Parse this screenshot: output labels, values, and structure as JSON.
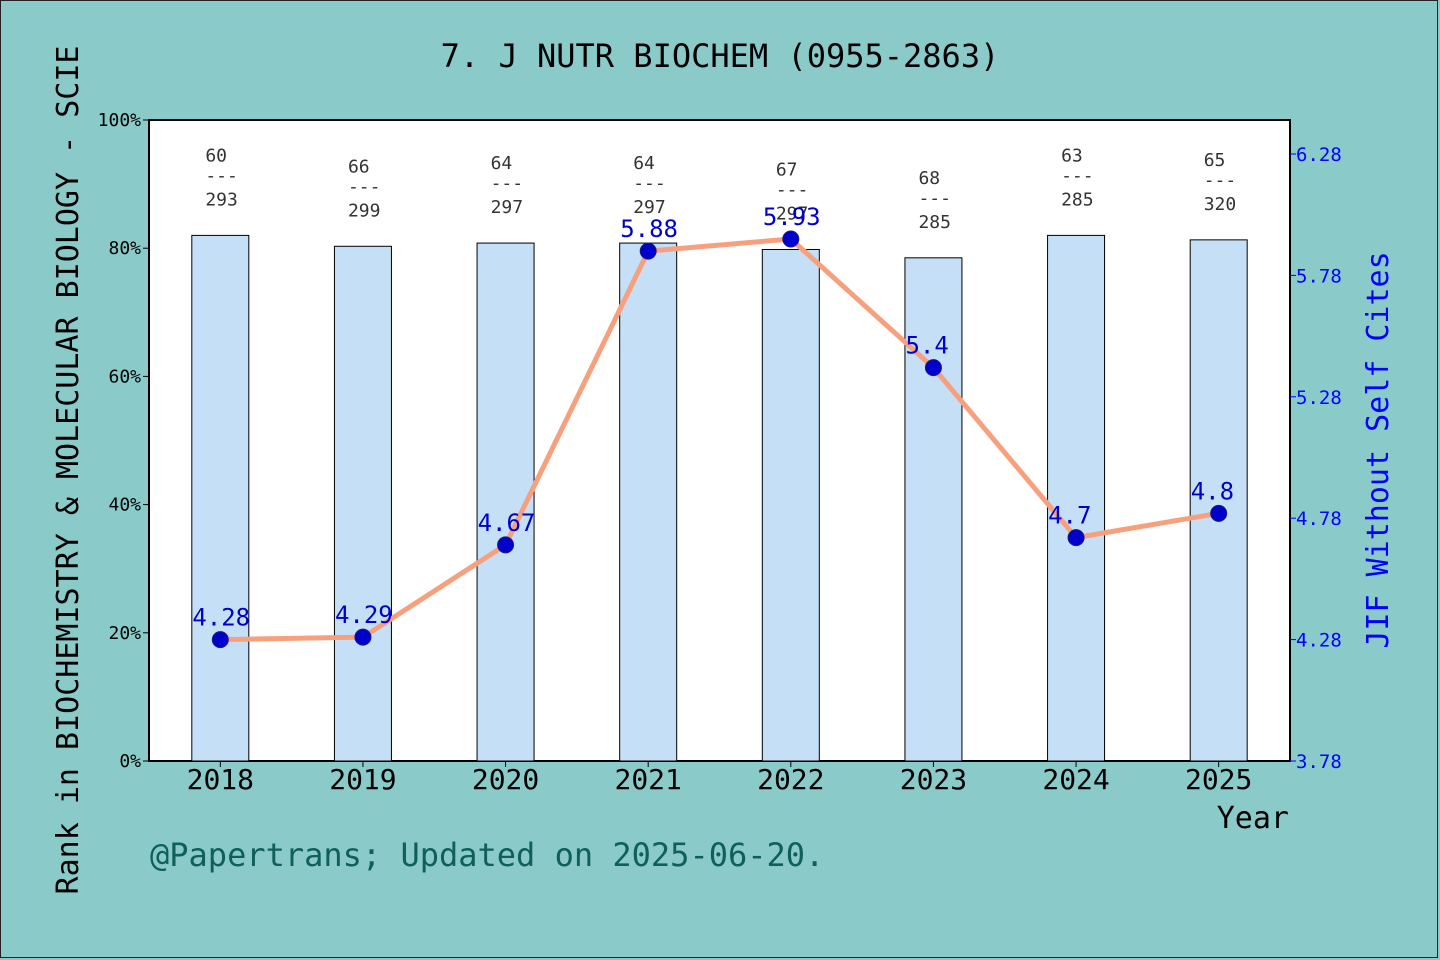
{
  "chart_data": {
    "type": "bar",
    "title": "7. J NUTR BIOCHEM (0955-2863)",
    "xlabel": "Year",
    "ylabel_left": "Rank in BIOCHEMISTRY & MOLECULAR BIOLOGY - SCIE",
    "ylabel_right": "JIF Without Self Cites",
    "categories": [
      "2018",
      "2019",
      "2020",
      "2021",
      "2022",
      "2023",
      "2024",
      "2025"
    ],
    "rank_labels": [
      {
        "rank": "60",
        "total": "293"
      },
      {
        "rank": "66",
        "total": "299"
      },
      {
        "rank": "64",
        "total": "297"
      },
      {
        "rank": "64",
        "total": "297"
      },
      {
        "rank": "67",
        "total": "297"
      },
      {
        "rank": "68",
        "total": "285"
      },
      {
        "rank": "63",
        "total": "285"
      },
      {
        "rank": "65",
        "total": "320"
      }
    ],
    "rank_separator": "---",
    "bar_values_percent": [
      82.0,
      80.3,
      80.8,
      80.8,
      79.8,
      78.5,
      82.0,
      81.3
    ],
    "line_values": [
      4.28,
      4.29,
      4.67,
      5.88,
      5.93,
      5.4,
      4.7,
      4.8
    ],
    "line_labels": [
      "4.28",
      "4.29",
      "4.67",
      "5.88",
      "5.93",
      "5.4",
      "4.7",
      "4.8"
    ],
    "ylim_left": [
      0,
      100
    ],
    "yticks_left": [
      "0%",
      "20%",
      "40%",
      "60%",
      "80%",
      "100%"
    ],
    "ylim_right": [
      3.78,
      6.42
    ],
    "yticks_right": [
      "3.78",
      "4.28",
      "4.78",
      "5.28",
      "5.78",
      "6.28"
    ],
    "colors": {
      "bar_fill": "#c5e0f6",
      "line": "#f7a07e",
      "marker": "#0000cc",
      "right_axis": "#0000ff",
      "background": "#8acbca"
    }
  },
  "footer": "@Papertrans; Updated on 2025-06-20."
}
